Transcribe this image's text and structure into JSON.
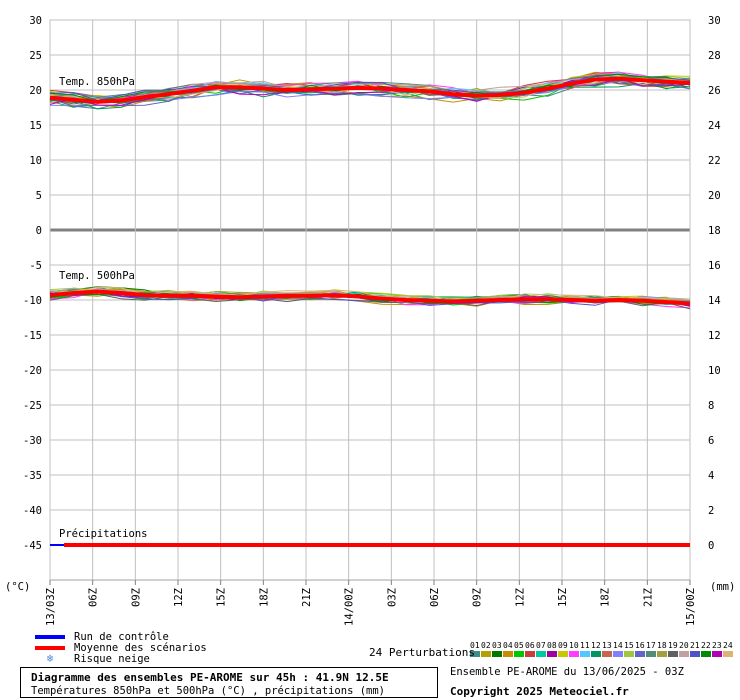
{
  "chart_data": {
    "type": "line",
    "left_axis": {
      "unit": "(°C)",
      "ylim": [
        -50,
        30
      ],
      "ticks": [
        30,
        25,
        20,
        15,
        10,
        5,
        0,
        -5,
        -10,
        -15,
        -20,
        -25,
        -30,
        -35,
        -40,
        -45
      ]
    },
    "right_axis": {
      "unit": "(mm)",
      "ticks": [
        30,
        28,
        26,
        24,
        22,
        20,
        18,
        16,
        14,
        12,
        10,
        8,
        6,
        4,
        2,
        0
      ]
    },
    "x_ticks": [
      "13/03Z",
      "06Z",
      "09Z",
      "12Z",
      "15Z",
      "18Z",
      "21Z",
      "14/00Z",
      "03Z",
      "06Z",
      "09Z",
      "12Z",
      "15Z",
      "18Z",
      "21Z",
      "15/00Z"
    ],
    "grid": true,
    "panels": [
      {
        "label": "Temp. 850hPa",
        "mean": [
          18.9,
          18.6,
          18.3,
          18.5,
          19.0,
          19.4,
          19.9,
          20.4,
          20.4,
          20.2,
          20.0,
          20.1,
          20.2,
          20.3,
          20.2,
          20.0,
          19.8,
          19.4,
          19.2,
          19.3,
          19.6,
          20.2,
          20.9,
          21.5,
          21.6,
          21.4,
          21.2,
          21.0
        ],
        "control": [
          18.8,
          18.5,
          18.2,
          18.4,
          18.9,
          19.3,
          19.8,
          20.3,
          20.3,
          20.1,
          19.9,
          20.0,
          20.1,
          20.2,
          20.1,
          19.9,
          19.7,
          19.3,
          19.1,
          19.2,
          19.5,
          20.1,
          20.8,
          21.4,
          21.5,
          21.3,
          21.1,
          20.9
        ]
      },
      {
        "label": "Temp. 500hPa",
        "mean": [
          -9.3,
          -9.0,
          -8.8,
          -9.0,
          -9.3,
          -9.4,
          -9.4,
          -9.5,
          -9.6,
          -9.5,
          -9.4,
          -9.4,
          -9.3,
          -9.5,
          -9.8,
          -10.0,
          -10.1,
          -10.2,
          -10.1,
          -10.0,
          -9.9,
          -9.9,
          -10.0,
          -10.1,
          -10.0,
          -10.1,
          -10.3,
          -10.5
        ],
        "control": [
          -9.4,
          -9.1,
          -8.9,
          -9.1,
          -9.4,
          -9.5,
          -9.5,
          -9.6,
          -9.7,
          -9.6,
          -9.5,
          -9.5,
          -9.4,
          -9.6,
          -9.9,
          -10.1,
          -10.2,
          -10.3,
          -10.2,
          -10.1,
          -10.0,
          -10.0,
          -10.1,
          -10.2,
          -10.1,
          -10.2,
          -10.4,
          -10.6
        ]
      },
      {
        "label": "Précipitations",
        "mean": [
          0,
          0,
          0,
          0,
          0,
          0,
          0,
          0,
          0,
          0,
          0,
          0,
          0,
          0,
          0,
          0,
          0,
          0,
          0,
          0,
          0,
          0,
          0,
          0,
          0,
          0,
          0,
          0
        ],
        "control": [
          0,
          0,
          0,
          0,
          0,
          0,
          0,
          0,
          0,
          0,
          0,
          0,
          0,
          0,
          0,
          0,
          0,
          0,
          0,
          0,
          0,
          0,
          0,
          0,
          0,
          0,
          0,
          0
        ]
      }
    ],
    "colors": {
      "control": "#0000ff",
      "mean": "#ff0000",
      "grid": "#c0c0c0",
      "zero_line": "#808080"
    },
    "perturbation_colors": [
      "#3c8c8c",
      "#b4a000",
      "#007800",
      "#c88c00",
      "#00c800",
      "#c83c3c",
      "#00c8a0",
      "#a000a0",
      "#c8c800",
      "#ff3cff",
      "#50c8ff",
      "#009664",
      "#c86450",
      "#8080ff",
      "#a0c83c",
      "#6464c8",
      "#508c78",
      "#a0a03c",
      "#606060",
      "#c0a0a0",
      "#5050c8",
      "#008c00",
      "#b400b4",
      "#dcb478"
    ]
  },
  "legend": {
    "control": "Run de contrôle",
    "mean": "Moyenne des scénarios",
    "snow": "Risque neige",
    "snow_icon": "snowflake-icon"
  },
  "perturbations": {
    "label": "24 Perturbations",
    "numbers": [
      "01",
      "02",
      "03",
      "04",
      "05",
      "06",
      "07",
      "08",
      "09",
      "10",
      "11",
      "12",
      "13",
      "14",
      "15",
      "16",
      "17",
      "18",
      "19",
      "20",
      "21",
      "22",
      "23",
      "24"
    ]
  },
  "footer": {
    "title": "Diagramme des ensembles PE-AROME sur 45h : 41.9N 12.5E",
    "subtitle": "Températures 850hPa et 500hPa (°C) , précipitations (mm)",
    "run": "Ensemble PE-AROME du 13/06/2025 - 03Z",
    "copyright": "Copyright 2025 Meteociel.fr"
  }
}
